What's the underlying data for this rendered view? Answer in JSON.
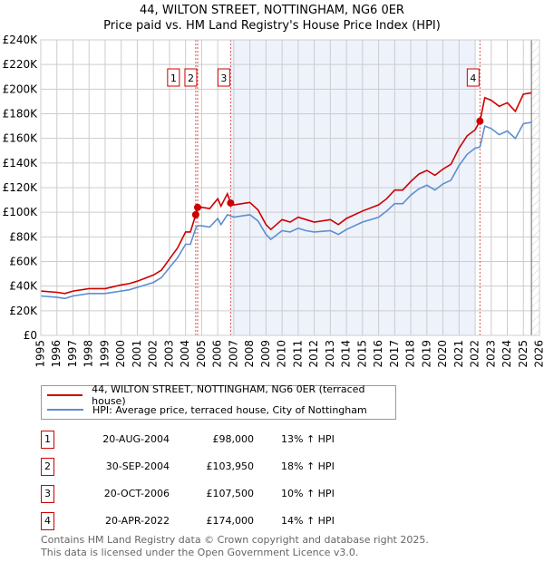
{
  "title": "44, WILTON STREET, NOTTINGHAM, NG6 0ER",
  "subtitle": "Price paid vs. HM Land Registry's House Price Index (HPI)",
  "colors": {
    "property": "#cc0000",
    "hpi": "#5b8fd0",
    "shade": "#eef2fb"
  },
  "chart_data": {
    "type": "line",
    "title": "Price paid vs. HM Land Registry's House Price Index (HPI)",
    "xlim": [
      1995,
      2026
    ],
    "ylim": [
      0,
      240000
    ],
    "x_ticks": [
      "1995",
      "1996",
      "1997",
      "1998",
      "1999",
      "2000",
      "2001",
      "2002",
      "2003",
      "2004",
      "2005",
      "2006",
      "2007",
      "2008",
      "2009",
      "2010",
      "2011",
      "2012",
      "2013",
      "2014",
      "2015",
      "2016",
      "2017",
      "2018",
      "2019",
      "2020",
      "2021",
      "2022",
      "2023",
      "2024",
      "2025",
      "2026"
    ],
    "y_ticks": [
      "£0",
      "£20K",
      "£40K",
      "£60K",
      "£80K",
      "£100K",
      "£120K",
      "£140K",
      "£160K",
      "£180K",
      "£200K",
      "£220K",
      "£240K"
    ],
    "grid": true,
    "x": [
      1995.0,
      1996.0,
      1996.5,
      1997.0,
      1998.0,
      1999.0,
      2000.0,
      2000.5,
      2001.0,
      2002.0,
      2002.5,
      2003.0,
      2003.5,
      2004.0,
      2004.3,
      2004.63,
      2004.75,
      2005.0,
      2005.5,
      2006.0,
      2006.2,
      2006.6,
      2006.8,
      2007.0,
      2007.5,
      2008.0,
      2008.5,
      2009.0,
      2009.3,
      2010.0,
      2010.5,
      2011.0,
      2011.5,
      2012.0,
      2013.0,
      2013.5,
      2014.0,
      2015.0,
      2016.0,
      2016.5,
      2017.0,
      2017.5,
      2018.0,
      2018.5,
      2019.0,
      2019.5,
      2020.0,
      2020.5,
      2021.0,
      2021.5,
      2022.0,
      2022.3,
      2022.6,
      2023.0,
      2023.5,
      2024.0,
      2024.5,
      2025.0,
      2025.5
    ],
    "series": [
      {
        "name": "44, WILTON STREET, NOTTINGHAM, NG6 0ER (terraced house)",
        "values": [
          36000,
          35000,
          34000,
          36000,
          38000,
          38000,
          41000,
          42000,
          44000,
          49000,
          53000,
          62000,
          71000,
          84000,
          84000,
          98000,
          103950,
          104000,
          103000,
          111000,
          105000,
          115000,
          107500,
          106000,
          107000,
          108000,
          102000,
          90000,
          86000,
          94000,
          92000,
          96000,
          94000,
          92000,
          94000,
          90000,
          95000,
          101000,
          106000,
          111000,
          118000,
          118000,
          125000,
          131000,
          134000,
          130000,
          135000,
          139000,
          152000,
          162000,
          167000,
          174000,
          193000,
          191000,
          186000,
          189000,
          182000,
          196000,
          197000
        ]
      },
      {
        "name": "HPI: Average price, terraced house, City of Nottingham",
        "values": [
          32000,
          31000,
          30000,
          32000,
          34000,
          34000,
          36000,
          37000,
          39000,
          43000,
          47000,
          55000,
          63000,
          74000,
          74000,
          87000,
          89000,
          89000,
          88000,
          95000,
          90000,
          98000,
          97000,
          96000,
          97000,
          98000,
          93000,
          82000,
          78000,
          85000,
          84000,
          87000,
          85000,
          84000,
          85000,
          82000,
          86000,
          92000,
          96000,
          101000,
          107000,
          107000,
          114000,
          119000,
          122000,
          118000,
          123000,
          126000,
          138000,
          147000,
          152000,
          153000,
          170000,
          168000,
          163000,
          166000,
          160000,
          172000,
          173000
        ]
      }
    ],
    "sales": [
      {
        "label": "1",
        "x": 2004.63,
        "value": 98000
      },
      {
        "label": "2",
        "x": 2004.75,
        "value": 103950
      },
      {
        "label": "3",
        "x": 2006.8,
        "value": 107500
      },
      {
        "label": "4",
        "x": 2022.3,
        "value": 174000
      }
    ],
    "shaded_range": [
      2006.8,
      2022.0
    ],
    "hatched_from": 2025.5
  },
  "legend": [
    {
      "label": "44, WILTON STREET, NOTTINGHAM, NG6 0ER (terraced house)"
    },
    {
      "label": "HPI: Average price, terraced house, City of Nottingham"
    }
  ],
  "transactions": [
    {
      "num": "1",
      "date": "20-AUG-2004",
      "price": "£98,000",
      "hpi": "13% ↑ HPI"
    },
    {
      "num": "2",
      "date": "30-SEP-2004",
      "price": "£103,950",
      "hpi": "18% ↑ HPI"
    },
    {
      "num": "3",
      "date": "20-OCT-2006",
      "price": "£107,500",
      "hpi": "10% ↑ HPI"
    },
    {
      "num": "4",
      "date": "20-APR-2022",
      "price": "£174,000",
      "hpi": "14% ↑ HPI"
    }
  ],
  "footer": {
    "line1": "Contains HM Land Registry data © Crown copyright and database right 2025.",
    "line2": "This data is licensed under the Open Government Licence v3.0."
  }
}
